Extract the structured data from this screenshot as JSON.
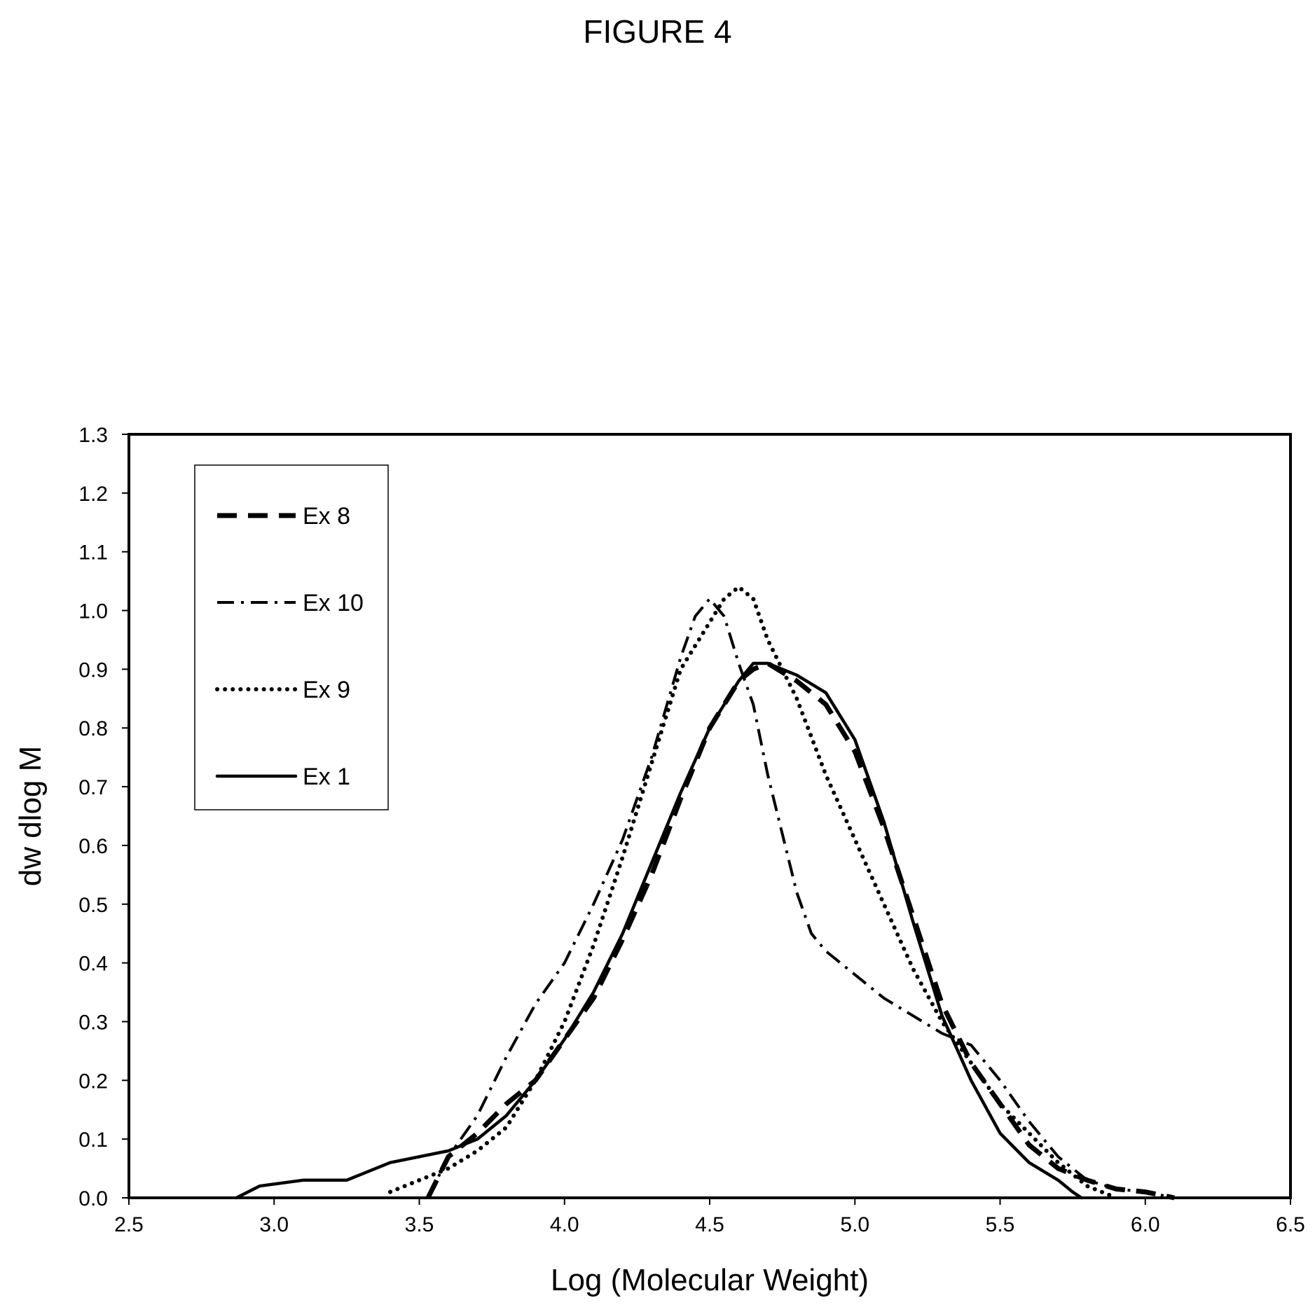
{
  "figure_title": "FIGURE 4",
  "chart_data": {
    "type": "line",
    "title": "FIGURE 4",
    "xlabel": "Log (Molecular Weight)",
    "ylabel": "dw dlog M",
    "xlim": [
      2.5,
      6.5
    ],
    "ylim": [
      0.0,
      1.3
    ],
    "x_ticks": [
      "2.5",
      "3.0",
      "3.5",
      "4.0",
      "4.5",
      "5.0",
      "5.5",
      "6.0",
      "6.5"
    ],
    "y_ticks": [
      "0.0",
      "0.1",
      "0.2",
      "0.3",
      "0.4",
      "0.5",
      "0.6",
      "0.7",
      "0.8",
      "0.9",
      "1.0",
      "1.1",
      "1.2",
      "1.3"
    ],
    "grid": false,
    "legend_position": "top-left",
    "series": [
      {
        "name": "Ex 8",
        "style": "dashed",
        "points": [
          [
            3.53,
            0.0
          ],
          [
            3.6,
            0.07
          ],
          [
            3.7,
            0.11
          ],
          [
            3.8,
            0.16
          ],
          [
            3.9,
            0.2
          ],
          [
            4.0,
            0.27
          ],
          [
            4.1,
            0.34
          ],
          [
            4.2,
            0.44
          ],
          [
            4.3,
            0.55
          ],
          [
            4.4,
            0.68
          ],
          [
            4.5,
            0.8
          ],
          [
            4.6,
            0.88
          ],
          [
            4.65,
            0.9
          ],
          [
            4.7,
            0.91
          ],
          [
            4.8,
            0.88
          ],
          [
            4.9,
            0.84
          ],
          [
            5.0,
            0.76
          ],
          [
            5.1,
            0.63
          ],
          [
            5.2,
            0.48
          ],
          [
            5.3,
            0.33
          ],
          [
            5.4,
            0.23
          ],
          [
            5.5,
            0.16
          ],
          [
            5.6,
            0.09
          ],
          [
            5.7,
            0.05
          ],
          [
            5.8,
            0.03
          ],
          [
            5.9,
            0.015
          ],
          [
            6.0,
            0.01
          ],
          [
            6.1,
            0.0
          ]
        ]
      },
      {
        "name": "Ex 10",
        "style": "dashdot",
        "points": [
          [
            3.53,
            0.0
          ],
          [
            3.6,
            0.07
          ],
          [
            3.7,
            0.14
          ],
          [
            3.8,
            0.24
          ],
          [
            3.9,
            0.33
          ],
          [
            4.0,
            0.4
          ],
          [
            4.1,
            0.5
          ],
          [
            4.2,
            0.61
          ],
          [
            4.3,
            0.75
          ],
          [
            4.4,
            0.92
          ],
          [
            4.45,
            0.99
          ],
          [
            4.5,
            1.02
          ],
          [
            4.55,
            0.99
          ],
          [
            4.6,
            0.91
          ],
          [
            4.65,
            0.84
          ],
          [
            4.7,
            0.72
          ],
          [
            4.75,
            0.62
          ],
          [
            4.8,
            0.52
          ],
          [
            4.85,
            0.45
          ],
          [
            4.9,
            0.42
          ],
          [
            5.0,
            0.38
          ],
          [
            5.1,
            0.34
          ],
          [
            5.2,
            0.31
          ],
          [
            5.3,
            0.28
          ],
          [
            5.4,
            0.26
          ],
          [
            5.5,
            0.2
          ],
          [
            5.6,
            0.13
          ],
          [
            5.7,
            0.07
          ],
          [
            5.8,
            0.03
          ],
          [
            5.9,
            0.015
          ],
          [
            6.0,
            0.01
          ],
          [
            6.1,
            0.0
          ]
        ]
      },
      {
        "name": "Ex 9",
        "style": "dotted",
        "points": [
          [
            3.4,
            0.01
          ],
          [
            3.5,
            0.03
          ],
          [
            3.6,
            0.05
          ],
          [
            3.7,
            0.08
          ],
          [
            3.8,
            0.12
          ],
          [
            3.9,
            0.2
          ],
          [
            4.0,
            0.3
          ],
          [
            4.1,
            0.43
          ],
          [
            4.2,
            0.58
          ],
          [
            4.3,
            0.74
          ],
          [
            4.4,
            0.9
          ],
          [
            4.5,
            0.98
          ],
          [
            4.55,
            1.02
          ],
          [
            4.6,
            1.04
          ],
          [
            4.65,
            1.02
          ],
          [
            4.7,
            0.95
          ],
          [
            4.8,
            0.85
          ],
          [
            4.9,
            0.72
          ],
          [
            5.0,
            0.61
          ],
          [
            5.1,
            0.5
          ],
          [
            5.2,
            0.39
          ],
          [
            5.3,
            0.3
          ],
          [
            5.4,
            0.23
          ],
          [
            5.5,
            0.16
          ],
          [
            5.6,
            0.11
          ],
          [
            5.7,
            0.06
          ],
          [
            5.8,
            0.02
          ],
          [
            5.9,
            0.0
          ]
        ]
      },
      {
        "name": "Ex 1",
        "style": "solid",
        "points": [
          [
            2.87,
            0.0
          ],
          [
            2.95,
            0.02
          ],
          [
            3.1,
            0.03
          ],
          [
            3.25,
            0.03
          ],
          [
            3.4,
            0.06
          ],
          [
            3.5,
            0.07
          ],
          [
            3.6,
            0.08
          ],
          [
            3.7,
            0.1
          ],
          [
            3.8,
            0.14
          ],
          [
            3.9,
            0.2
          ],
          [
            4.0,
            0.27
          ],
          [
            4.1,
            0.35
          ],
          [
            4.2,
            0.45
          ],
          [
            4.3,
            0.57
          ],
          [
            4.4,
            0.69
          ],
          [
            4.5,
            0.8
          ],
          [
            4.6,
            0.88
          ],
          [
            4.65,
            0.91
          ],
          [
            4.7,
            0.91
          ],
          [
            4.8,
            0.89
          ],
          [
            4.9,
            0.86
          ],
          [
            5.0,
            0.78
          ],
          [
            5.1,
            0.64
          ],
          [
            5.2,
            0.47
          ],
          [
            5.3,
            0.31
          ],
          [
            5.4,
            0.2
          ],
          [
            5.5,
            0.11
          ],
          [
            5.6,
            0.06
          ],
          [
            5.7,
            0.03
          ],
          [
            5.75,
            0.01
          ],
          [
            5.78,
            0.0
          ]
        ]
      }
    ]
  }
}
